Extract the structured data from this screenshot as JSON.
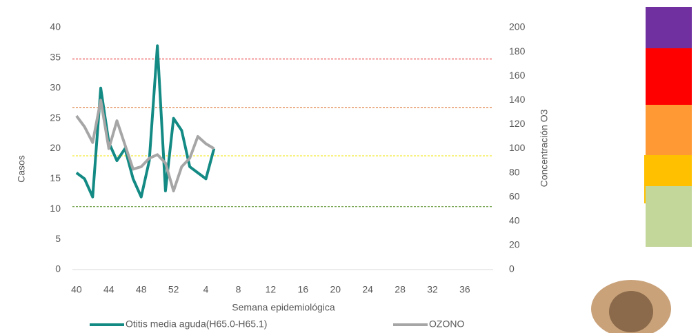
{
  "chart_data": {
    "type": "line",
    "x_label": "Semana epidemiológica",
    "y_label": "Casos",
    "y2_label": "Concentración O3",
    "categories": [
      "40",
      null,
      null,
      null,
      "44",
      null,
      null,
      null,
      "48",
      null,
      null,
      null,
      "52",
      null,
      null,
      null,
      "4",
      null,
      null,
      null,
      "8",
      null,
      null,
      null,
      "12",
      null,
      null,
      null,
      "16",
      null,
      null,
      null,
      "20",
      null,
      null,
      null,
      "24",
      null,
      null,
      null,
      "28",
      null,
      null,
      null,
      "32",
      null,
      null,
      null,
      "36",
      null,
      null,
      null
    ],
    "ylim": [
      0,
      40
    ],
    "yticks": [
      0,
      5,
      10,
      15,
      20,
      25,
      30,
      35,
      40
    ],
    "y2lim": [
      0,
      200
    ],
    "y2ticks": [
      0,
      20,
      40,
      60,
      80,
      100,
      120,
      140,
      160,
      180,
      200
    ],
    "grid": false,
    "legend": "bottom",
    "reference_lines": [
      {
        "axis": "y2",
        "value": 174,
        "color": "#e31a1c"
      },
      {
        "axis": "y2",
        "value": 134,
        "color": "#d9661f"
      },
      {
        "axis": "y2",
        "value": 94,
        "color": "#f2e600"
      },
      {
        "axis": "y2",
        "value": 52,
        "color": "#4e8a1e"
      }
    ],
    "series": [
      {
        "name": "Otitis media aguda(H65.0-H65.1)",
        "color": "#138a84",
        "axis": "y",
        "values": [
          16,
          15,
          12,
          30,
          21,
          18,
          20,
          15,
          12,
          18,
          37,
          13,
          25,
          23,
          17,
          16,
          15,
          20,
          null,
          null,
          null,
          null,
          null,
          null,
          null,
          null,
          null,
          null,
          null,
          null,
          null,
          null,
          null,
          null,
          null,
          null,
          null,
          null,
          null,
          null,
          null,
          null,
          null,
          null,
          null,
          null,
          null,
          null,
          null,
          null,
          null,
          null
        ]
      },
      {
        "name": "OZONO",
        "color": "#a6a6a6",
        "axis": "y2",
        "values": [
          127,
          118,
          105,
          140,
          100,
          123,
          103,
          83,
          85,
          92,
          95,
          88,
          65,
          85,
          92,
          110,
          104,
          100,
          null,
          null,
          null,
          null,
          null,
          null,
          null,
          null,
          null,
          null,
          null,
          null,
          null,
          null,
          null,
          null,
          null,
          null,
          null,
          null,
          null,
          null,
          null,
          null,
          null,
          null,
          null,
          null,
          null,
          null,
          null,
          null,
          null,
          null
        ]
      }
    ]
  }
}
